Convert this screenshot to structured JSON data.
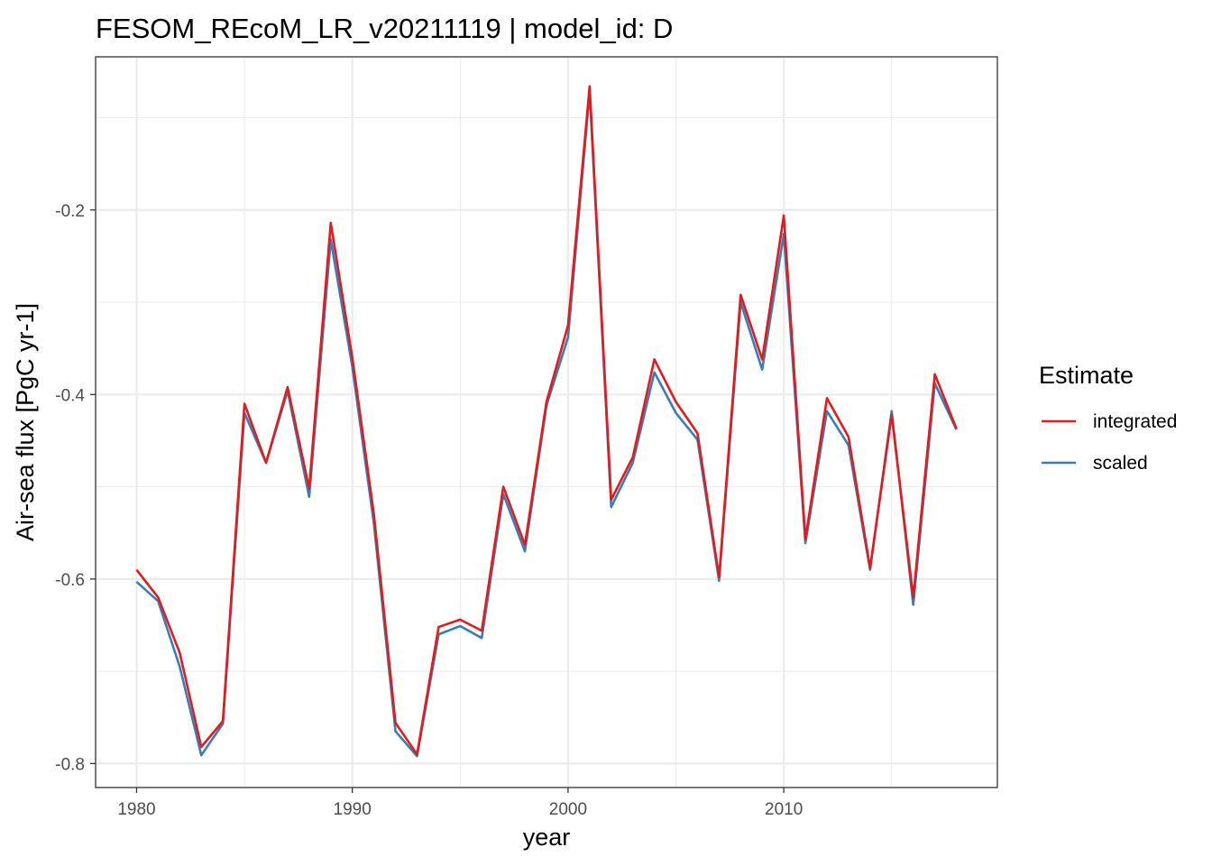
{
  "chart_data": {
    "type": "line",
    "title": "FESOM_REcoM_LR_v20211119 | model_id: D",
    "xlabel": "year",
    "ylabel": "Air-sea flux [PgC yr-1]",
    "xlim": [
      1978.1,
      2019.9
    ],
    "ylim": [
      -0.826,
      -0.034
    ],
    "x_ticks": [
      1980,
      1990,
      2000,
      2010
    ],
    "y_ticks": [
      -0.8,
      -0.6,
      -0.4,
      -0.2
    ],
    "y_tick_labels": [
      "-0.8",
      "-0.6",
      "-0.4",
      "-0.2"
    ],
    "grid": true,
    "legend": {
      "title": "Estimate",
      "position": "right"
    },
    "x": [
      1980,
      1981,
      1982,
      1983,
      1984,
      1985,
      1986,
      1987,
      1988,
      1989,
      1990,
      1991,
      1992,
      1993,
      1994,
      1995,
      1996,
      1997,
      1998,
      1999,
      2000,
      2001,
      2002,
      2003,
      2004,
      2005,
      2006,
      2007,
      2008,
      2009,
      2010,
      2011,
      2012,
      2013,
      2014,
      2015,
      2016,
      2017,
      2018
    ],
    "series": [
      {
        "name": "integrated",
        "color": "#e41a1c",
        "values": [
          -0.59,
          -0.62,
          -0.68,
          -0.782,
          -0.754,
          -0.41,
          -0.474,
          -0.392,
          -0.502,
          -0.214,
          -0.36,
          -0.53,
          -0.756,
          -0.79,
          -0.652,
          -0.644,
          -0.656,
          -0.5,
          -0.563,
          -0.408,
          -0.325,
          -0.066,
          -0.514,
          -0.468,
          -0.362,
          -0.408,
          -0.442,
          -0.598,
          -0.292,
          -0.362,
          -0.206,
          -0.557,
          -0.404,
          -0.446,
          -0.588,
          -0.422,
          -0.62,
          -0.378,
          -0.437
        ]
      },
      {
        "name": "scaled",
        "color": "#377eb8",
        "values": [
          -0.603,
          -0.624,
          -0.695,
          -0.791,
          -0.757,
          -0.42,
          -0.474,
          -0.396,
          -0.511,
          -0.232,
          -0.37,
          -0.54,
          -0.765,
          -0.792,
          -0.66,
          -0.651,
          -0.664,
          -0.508,
          -0.57,
          -0.412,
          -0.338,
          -0.072,
          -0.522,
          -0.474,
          -0.376,
          -0.42,
          -0.449,
          -0.602,
          -0.3,
          -0.373,
          -0.226,
          -0.561,
          -0.418,
          -0.455,
          -0.59,
          -0.418,
          -0.628,
          -0.388,
          -0.438
        ]
      }
    ]
  }
}
